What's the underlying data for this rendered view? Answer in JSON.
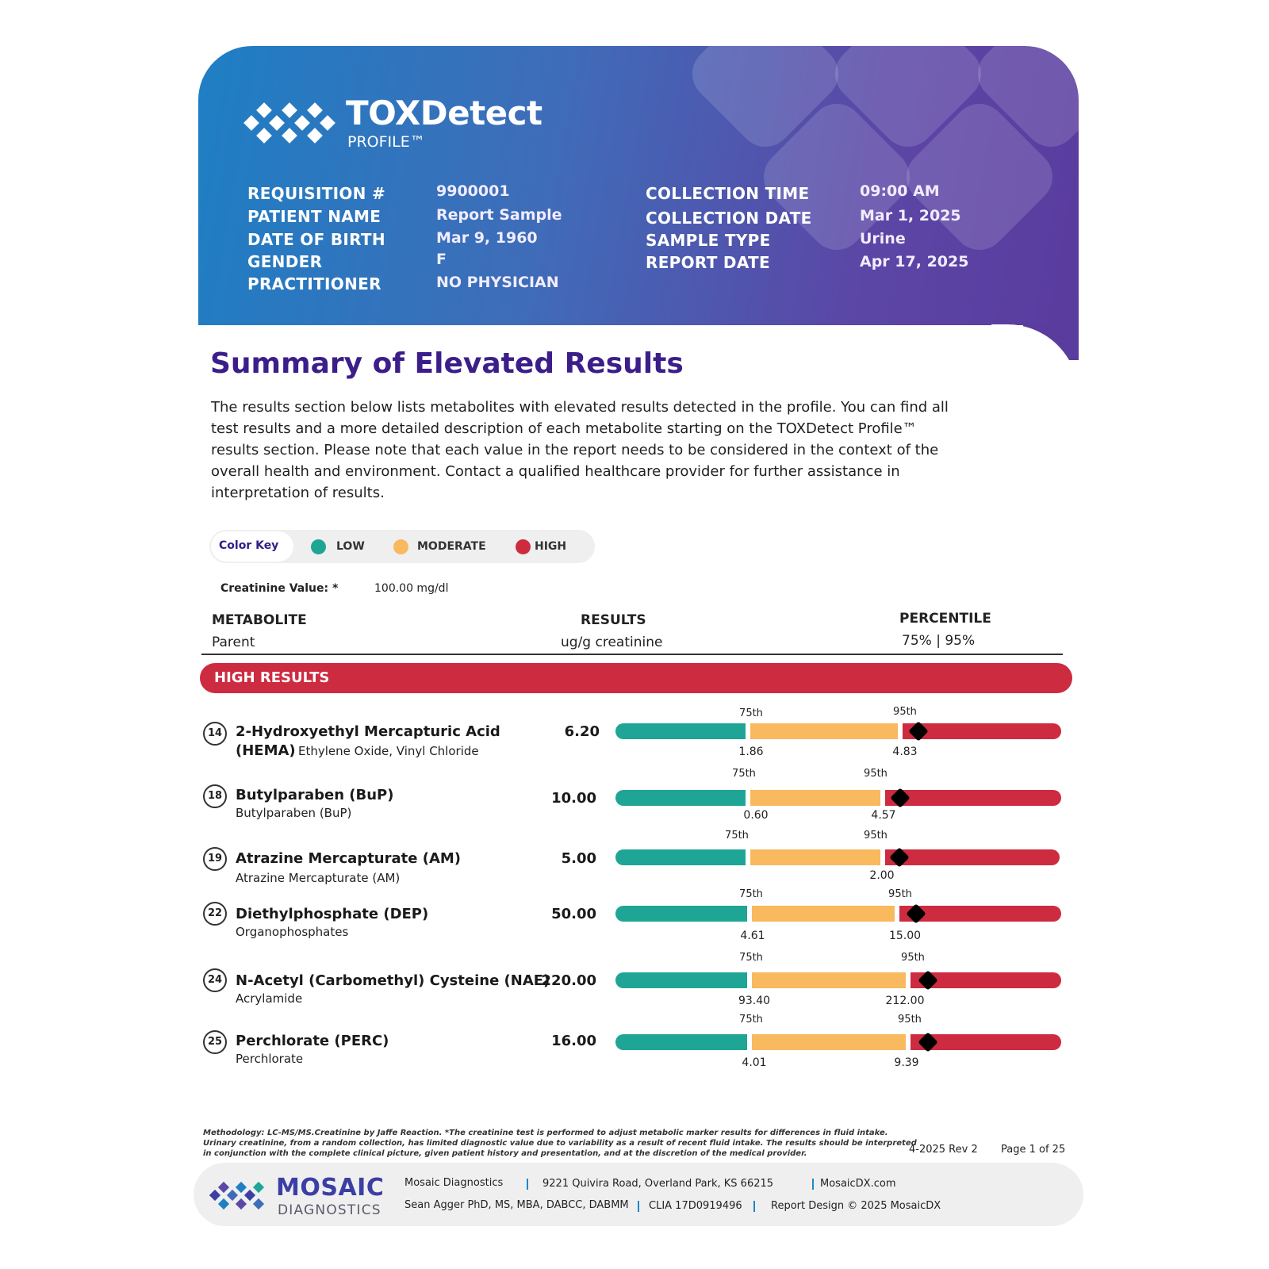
{
  "header": {
    "brand": "TOXDetect",
    "subbrand": "PROFILE™",
    "left_fields": [
      {
        "label": "REQUISITION #",
        "value": "9900001"
      },
      {
        "label": "PATIENT NAME",
        "value": "Report Sample"
      },
      {
        "label": "DATE OF BIRTH",
        "value": "Mar 9, 1960"
      },
      {
        "label": "GENDER",
        "value": "F"
      },
      {
        "label": "PRACTITIONER",
        "value": "NO PHYSICIAN"
      }
    ],
    "right_fields": [
      {
        "label": "COLLECTION TIME",
        "value": "09:00 AM"
      },
      {
        "label": "COLLECTION DATE",
        "value": "Mar 1, 2025"
      },
      {
        "label": "SAMPLE TYPE",
        "value": "Urine"
      },
      {
        "label": "REPORT DATE",
        "value": "Apr 17, 2025"
      }
    ]
  },
  "summary": {
    "title": "Summary of Elevated Results",
    "text": "The results section below lists metabolites with elevated results detected in the profile. You can find all test results and a more detailed description of each metabolite starting on the TOXDetect Profile™ results section. Please note that each value in the report needs to be considered in the context of the overall health and environment. Contact a qualified healthcare provider for further assistance in interpretation of results."
  },
  "color_key": {
    "label": "Color Key",
    "items": [
      {
        "label": "LOW",
        "color": "#1fa596"
      },
      {
        "label": "MODERATE",
        "color": "#f8b95f"
      },
      {
        "label": "HIGH",
        "color": "#cd2b40"
      }
    ]
  },
  "creatinine": {
    "label": "Creatinine Value: *",
    "value": "100.00 mg/dl"
  },
  "columns": {
    "metabolite": "METABOLITE",
    "metabolite_sub": "Parent",
    "results": "RESULTS",
    "results_sub": "ug/g creatinine",
    "percentile": "PERCENTILE",
    "percentile_sub": "75% | 95%"
  },
  "high_banner": "HIGH RESULTS",
  "pct_labels": {
    "p75": "75th",
    "p95": "95th"
  },
  "rows": [
    {
      "num": "14",
      "name": "2-Hydroxyethyl Mercapturic Acid",
      "name2": "(HEMA)",
      "parent": "Ethylene Oxide, Vinyl Chloride",
      "result": "6.20",
      "p75": "1.86",
      "p95": "4.83",
      "marker_fraction": 0.7
    },
    {
      "num": "18",
      "name": "Butylparaben (BuP)",
      "parent": "Butylparaben (BuP)",
      "result": "10.00",
      "p75": "0.60",
      "p95": "4.57",
      "marker_fraction": 0.64
    },
    {
      "num": "19",
      "name": "Atrazine Mercapturate (AM)",
      "parent": "Atrazine Mercapturate (AM)",
      "result": "5.00",
      "p75": "",
      "p95": "2.00",
      "marker_fraction": 0.64
    },
    {
      "num": "22",
      "name": "Diethylphosphate (DEP)",
      "parent": "Organophosphates",
      "result": "50.00",
      "p75": "4.61",
      "p95": "15.00",
      "marker_fraction": 0.675
    },
    {
      "num": "24",
      "name": "N-Acetyl (Carbomethyl) Cysteine (NAE)",
      "parent": "Acrylamide",
      "result": "220.00",
      "p75": "93.40",
      "p95": "212.00",
      "marker_fraction": 0.695
    },
    {
      "num": "25",
      "name": "Perchlorate (PERC)",
      "parent": "Perchlorate",
      "result": "16.00",
      "p75": "4.01",
      "p95": "9.39",
      "marker_fraction": 0.695
    }
  ],
  "footer": {
    "methodology": "Methodology: LC-MS/MS.Creatinine by Jaffe Reaction. *The creatinine test is performed to adjust metabolic marker results for differences in fluid intake. Urinary creatinine, from a random collection, has limited diagnostic value due to variability as a result of recent fluid intake. The results should be interpreted in conjunction with the complete clinical picture, given patient history and presentation, and at the discretion of the medical provider.",
    "revision": "4-2025 Rev 2",
    "page": "Page 1 of 25",
    "company": "MOSAIC",
    "company_sub": "DIAGNOSTICS",
    "line1": [
      "Mosaic Diagnostics",
      "9221 Quivira Road, Overland Park, KS 66215",
      "MosaicDX.com"
    ],
    "line2": [
      "Sean Agger PhD, MS, MBA, DABCC, DABMM",
      "CLIA 17D0919496",
      "Report Design © 2025 MosaicDX"
    ]
  }
}
